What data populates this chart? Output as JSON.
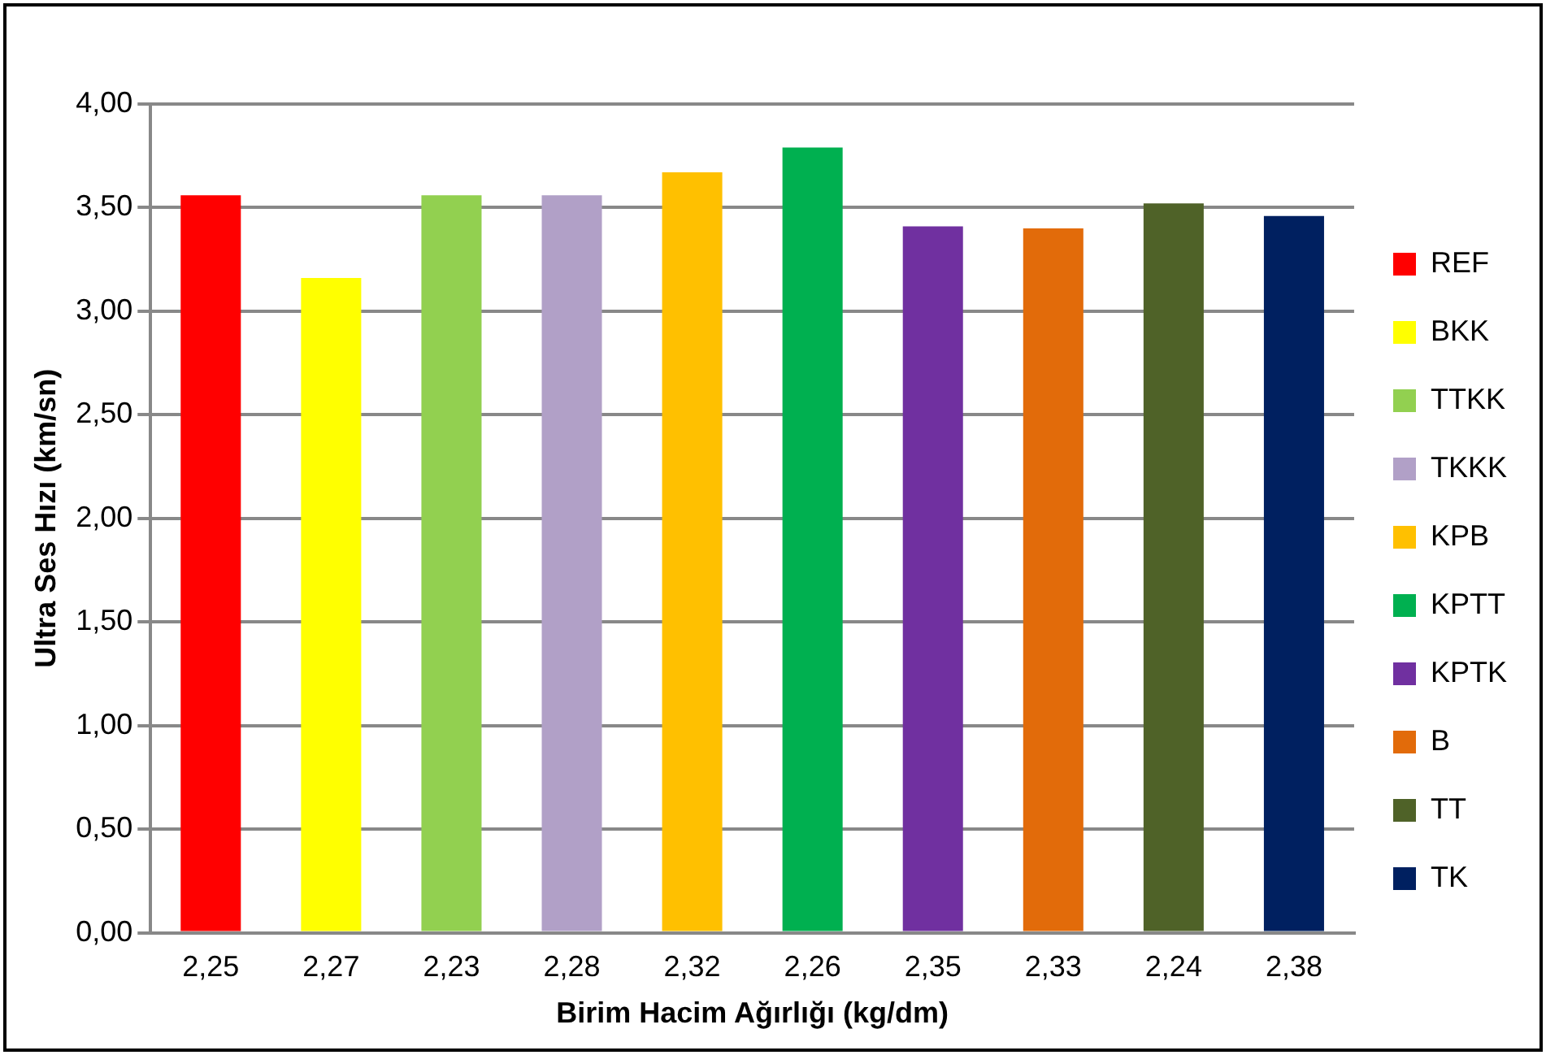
{
  "chart_data": {
    "type": "bar",
    "xlabel": "Birim Hacim Ağırlığı (kg/dm)",
    "ylabel": "Ultra Ses Hızı (km/sn)",
    "categories": [
      "2,25",
      "2,27",
      "2,23",
      "2,28",
      "2,32",
      "2,26",
      "2,35",
      "2,33",
      "2,24",
      "2,38"
    ],
    "series": [
      {
        "name": "REF",
        "color": "#ff0000",
        "values": [
          3.56,
          null,
          null,
          null,
          null,
          null,
          null,
          null,
          null,
          null
        ]
      },
      {
        "name": "BKK",
        "color": "#ffff00",
        "values": [
          null,
          3.16,
          null,
          null,
          null,
          null,
          null,
          null,
          null,
          null
        ]
      },
      {
        "name": "TTKK",
        "color": "#92d050",
        "values": [
          null,
          null,
          3.56,
          null,
          null,
          null,
          null,
          null,
          null,
          null
        ]
      },
      {
        "name": "TKKK",
        "color": "#b1a0c7",
        "values": [
          null,
          null,
          null,
          3.56,
          null,
          null,
          null,
          null,
          null,
          null
        ]
      },
      {
        "name": "KPB",
        "color": "#ffc000",
        "values": [
          null,
          null,
          null,
          null,
          3.67,
          null,
          null,
          null,
          null,
          null
        ]
      },
      {
        "name": "KPTT",
        "color": "#00b050",
        "values": [
          null,
          null,
          null,
          null,
          null,
          3.79,
          null,
          null,
          null,
          null
        ]
      },
      {
        "name": "KPTK",
        "color": "#7030a0",
        "values": [
          null,
          null,
          null,
          null,
          null,
          null,
          3.41,
          null,
          null,
          null
        ]
      },
      {
        "name": "B",
        "color": "#e26b0a",
        "values": [
          null,
          null,
          null,
          null,
          null,
          null,
          null,
          3.4,
          null,
          null
        ]
      },
      {
        "name": "TT",
        "color": "#4f6228",
        "values": [
          null,
          null,
          null,
          null,
          null,
          null,
          null,
          null,
          3.52,
          null
        ]
      },
      {
        "name": "TK",
        "color": "#002060",
        "values": [
          null,
          null,
          null,
          null,
          null,
          null,
          null,
          null,
          null,
          3.46
        ]
      }
    ],
    "ylim": [
      0,
      4
    ],
    "yticks": [
      {
        "value": 0,
        "label": "0,00"
      },
      {
        "value": 0.5,
        "label": "0,50"
      },
      {
        "value": 1,
        "label": "1,00"
      },
      {
        "value": 1.5,
        "label": "1,50"
      },
      {
        "value": 2,
        "label": "2,00"
      },
      {
        "value": 2.5,
        "label": "2,50"
      },
      {
        "value": 3,
        "label": "3,00"
      },
      {
        "value": 3.5,
        "label": "3,50"
      },
      {
        "value": 4,
        "label": "4,00"
      }
    ],
    "grid": "y",
    "legend": "right"
  }
}
